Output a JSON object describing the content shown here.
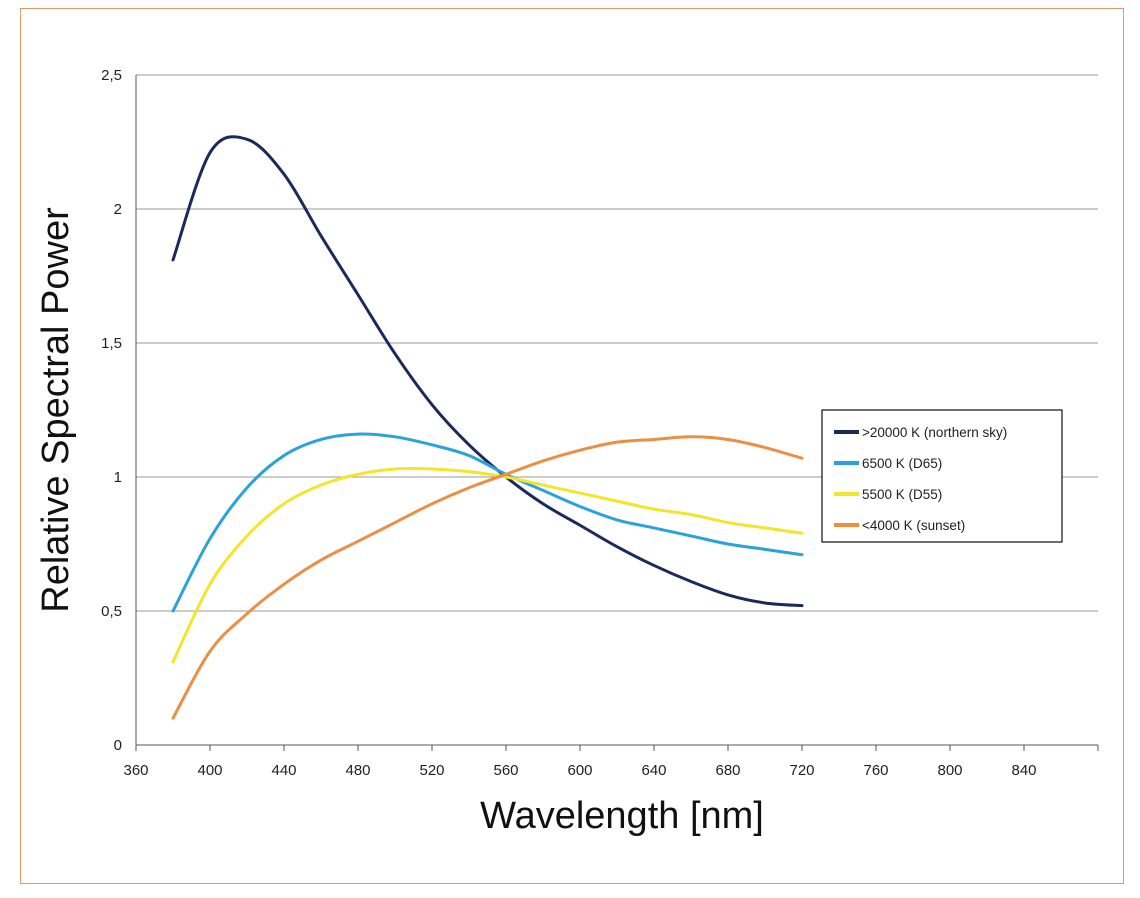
{
  "chart_data": {
    "type": "line",
    "xlabel": "Wavelength [nm]",
    "ylabel": "Relative Spectral Power",
    "xlim": [
      360,
      880
    ],
    "ylim": [
      0,
      2.5
    ],
    "x_ticks": [
      "360",
      "400",
      "440",
      "480",
      "520",
      "560",
      "600",
      "640",
      "680",
      "720",
      "760",
      "800",
      "840"
    ],
    "y_ticks": [
      "0",
      "0,5",
      "1",
      "1,5",
      "2",
      "2,5"
    ],
    "grid": "horizontal",
    "legend_position": "right",
    "x": [
      380,
      400,
      420,
      440,
      460,
      480,
      500,
      520,
      540,
      560,
      580,
      600,
      620,
      640,
      660,
      680,
      700,
      720
    ],
    "series": [
      {
        "name": ">20000 K (northern sky)",
        "color": "#1b2a5c",
        "values": [
          1.81,
          2.21,
          2.26,
          2.13,
          1.9,
          1.68,
          1.46,
          1.27,
          1.12,
          1.0,
          0.9,
          0.82,
          0.74,
          0.67,
          0.61,
          0.56,
          0.53,
          0.52
        ]
      },
      {
        "name": "6500 K (D65)",
        "color": "#29a3dc",
        "values": [
          0.5,
          0.77,
          0.96,
          1.08,
          1.14,
          1.16,
          1.15,
          1.12,
          1.08,
          1.01,
          0.95,
          0.89,
          0.84,
          0.81,
          0.78,
          0.75,
          0.73,
          0.71
        ]
      },
      {
        "name": "5500 K (D55)",
        "color": "#f5e52a",
        "values": [
          0.31,
          0.6,
          0.78,
          0.9,
          0.97,
          1.01,
          1.03,
          1.03,
          1.02,
          1.0,
          0.97,
          0.94,
          0.91,
          0.88,
          0.86,
          0.83,
          0.81,
          0.79
        ]
      },
      {
        "name": "<4000 K (sunset)",
        "color": "#ec8f43",
        "values": [
          0.1,
          0.35,
          0.49,
          0.6,
          0.69,
          0.76,
          0.83,
          0.9,
          0.96,
          1.01,
          1.06,
          1.1,
          1.13,
          1.14,
          1.15,
          1.14,
          1.11,
          1.07
        ]
      }
    ]
  }
}
